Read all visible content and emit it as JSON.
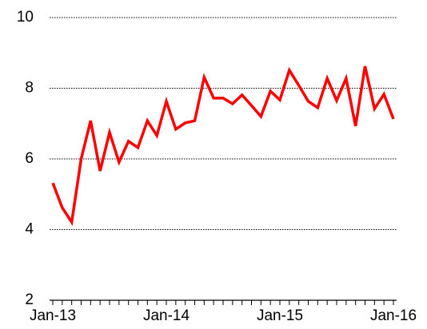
{
  "chart_data": {
    "type": "line",
    "categories": [
      "Jan-13",
      null,
      null,
      null,
      null,
      null,
      null,
      null,
      null,
      null,
      null,
      null,
      "Jan-14",
      null,
      null,
      null,
      null,
      null,
      null,
      null,
      null,
      null,
      null,
      null,
      "Jan-15",
      null,
      null,
      null,
      null,
      null,
      null,
      null,
      null,
      null,
      null,
      null,
      "Jan-16"
    ],
    "values": [
      5.32,
      4.62,
      4.21,
      6.0,
      7.08,
      5.66,
      6.75,
      5.91,
      6.5,
      6.32,
      7.08,
      6.66,
      7.63,
      6.84,
      7.02,
      7.08,
      8.31,
      7.72,
      7.72,
      7.56,
      7.81,
      7.51,
      7.2,
      7.92,
      7.67,
      8.51,
      8.08,
      7.63,
      7.45,
      8.28,
      7.65,
      8.28,
      6.93,
      8.62,
      7.42,
      7.83,
      7.13
    ],
    "color": "#ff0000",
    "ylim": [
      2,
      10
    ],
    "yticks": [
      2,
      4,
      6,
      8,
      10
    ],
    "grid": true
  }
}
